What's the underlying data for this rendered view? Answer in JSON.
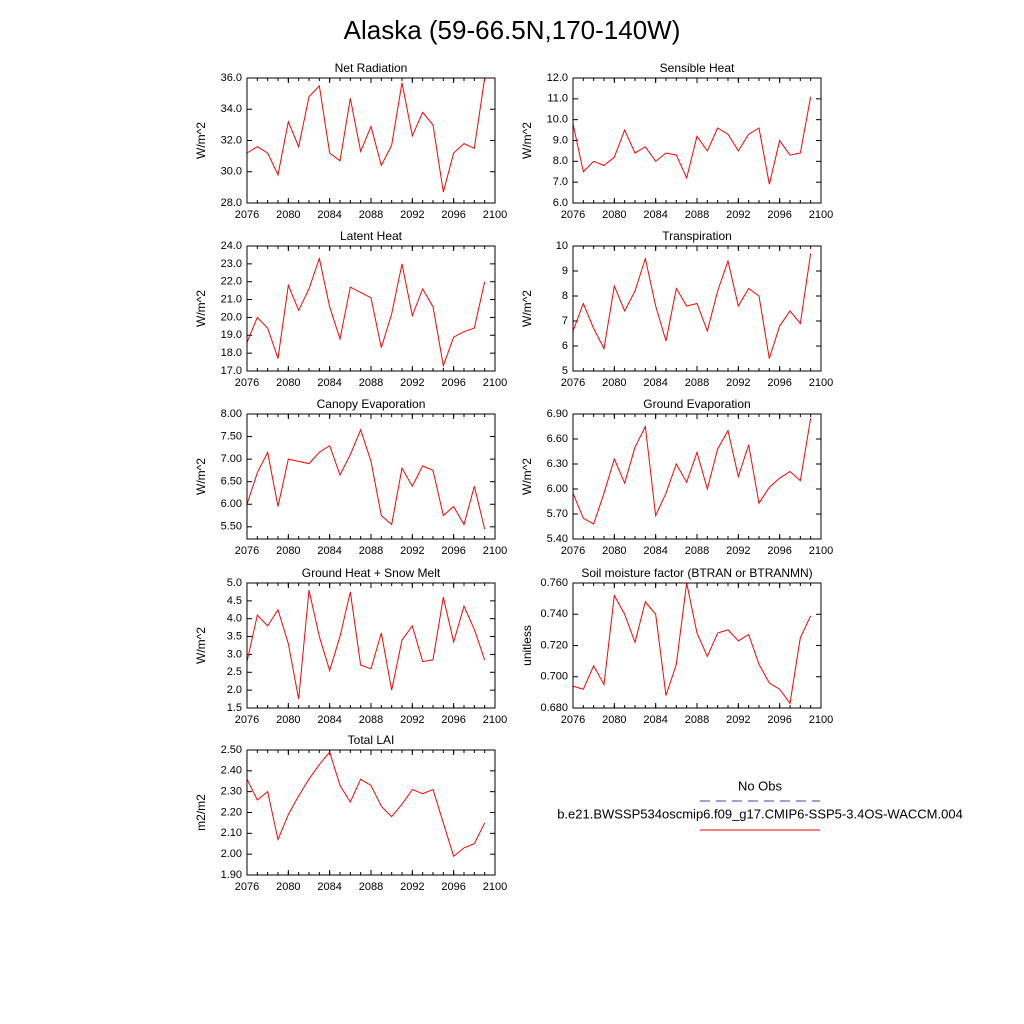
{
  "title": "Alaska (59-66.5N,170-140W)",
  "legend": [
    {
      "name": "No Obs",
      "color": "#4040a0",
      "dash": true
    },
    {
      "name": "b.e21.BWSSP534oscmip6.f09_g17.CMIP6-SSP5-3.4OS-WACCM.004",
      "color": "#ff0000",
      "dash": false
    }
  ],
  "chart_data": [
    {
      "type": "line",
      "title": "Net Radiation",
      "ylabel": "W/m^2",
      "color": "#ff0000",
      "x": [
        2076,
        2077,
        2078,
        2079,
        2080,
        2081,
        2082,
        2083,
        2084,
        2085,
        2086,
        2087,
        2088,
        2089,
        2090,
        2091,
        2092,
        2093,
        2094,
        2095,
        2096,
        2097,
        2098,
        2099
      ],
      "values": [
        31.2,
        31.6,
        31.2,
        29.8,
        33.2,
        31.6,
        34.8,
        35.5,
        31.2,
        30.7,
        34.7,
        31.3,
        32.9,
        30.4,
        31.7,
        35.7,
        32.3,
        33.8,
        33.0,
        28.7,
        31.2,
        31.8,
        31.5,
        36.0
      ],
      "xlim": [
        2076,
        2100
      ],
      "xticks": [
        2076,
        2080,
        2084,
        2088,
        2092,
        2096,
        2100
      ],
      "ylim": [
        28,
        36
      ],
      "yticks": [
        {
          "value": 28,
          "label": "28.0"
        },
        {
          "value": 30,
          "label": "30.0"
        },
        {
          "value": 32,
          "label": "32.0"
        },
        {
          "value": 34,
          "label": "34.0"
        },
        {
          "value": 36,
          "label": "36.0"
        }
      ]
    },
    {
      "type": "line",
      "title": "Sensible Heat",
      "ylabel": "W/m^2",
      "color": "#ff0000",
      "x": [
        2076,
        2077,
        2078,
        2079,
        2080,
        2081,
        2082,
        2083,
        2084,
        2085,
        2086,
        2087,
        2088,
        2089,
        2090,
        2091,
        2092,
        2093,
        2094,
        2095,
        2096,
        2097,
        2098,
        2099
      ],
      "values": [
        9.8,
        7.5,
        8.0,
        7.8,
        8.2,
        9.5,
        8.4,
        8.7,
        8.0,
        8.4,
        8.3,
        7.2,
        9.2,
        8.5,
        9.6,
        9.3,
        8.5,
        9.3,
        9.6,
        6.9,
        9.0,
        8.3,
        8.4,
        11.1
      ],
      "xlim": [
        2076,
        2100
      ],
      "xticks": [
        2076,
        2080,
        2084,
        2088,
        2092,
        2096,
        2100
      ],
      "ylim": [
        6,
        12
      ],
      "yticks": [
        {
          "value": 6,
          "label": "6.0"
        },
        {
          "value": 7,
          "label": "7.0"
        },
        {
          "value": 8,
          "label": "8.0"
        },
        {
          "value": 9,
          "label": "9.0"
        },
        {
          "value": 10,
          "label": "10.0"
        },
        {
          "value": 11,
          "label": "11.0"
        },
        {
          "value": 12,
          "label": "12.0"
        }
      ]
    },
    {
      "type": "line",
      "title": "Latent Heat",
      "ylabel": "W/m^2",
      "color": "#ff0000",
      "x": [
        2076,
        2077,
        2078,
        2079,
        2080,
        2081,
        2082,
        2083,
        2084,
        2085,
        2086,
        2087,
        2088,
        2089,
        2090,
        2091,
        2092,
        2093,
        2094,
        2095,
        2096,
        2097,
        2098,
        2099
      ],
      "values": [
        18.6,
        20.0,
        19.4,
        17.7,
        21.8,
        20.4,
        21.6,
        23.3,
        20.6,
        18.8,
        21.7,
        21.4,
        21.1,
        18.3,
        20.2,
        23.0,
        20.1,
        21.6,
        20.6,
        17.3,
        18.9,
        19.2,
        19.4,
        22.0
      ],
      "xlim": [
        2076,
        2100
      ],
      "xticks": [
        2076,
        2080,
        2084,
        2088,
        2092,
        2096,
        2100
      ],
      "ylim": [
        17,
        24
      ],
      "yticks": [
        {
          "value": 17,
          "label": "17.0"
        },
        {
          "value": 18,
          "label": "18.0"
        },
        {
          "value": 19,
          "label": "19.0"
        },
        {
          "value": 20,
          "label": "20.0"
        },
        {
          "value": 21,
          "label": "21.0"
        },
        {
          "value": 22,
          "label": "22.0"
        },
        {
          "value": 23,
          "label": "23.0"
        },
        {
          "value": 24,
          "label": "24.0"
        }
      ]
    },
    {
      "type": "line",
      "title": "Transpiration",
      "ylabel": "W/m^2",
      "color": "#ff0000",
      "x": [
        2076,
        2077,
        2078,
        2079,
        2080,
        2081,
        2082,
        2083,
        2084,
        2085,
        2086,
        2087,
        2088,
        2089,
        2090,
        2091,
        2092,
        2093,
        2094,
        2095,
        2096,
        2097,
        2098,
        2099
      ],
      "values": [
        6.6,
        7.7,
        6.7,
        5.9,
        8.4,
        7.4,
        8.2,
        9.5,
        7.6,
        6.2,
        8.3,
        7.6,
        7.7,
        6.6,
        8.2,
        9.4,
        7.6,
        8.3,
        8.0,
        5.5,
        6.8,
        7.4,
        6.9,
        9.7
      ],
      "xlim": [
        2076,
        2100
      ],
      "xticks": [
        2076,
        2080,
        2084,
        2088,
        2092,
        2096,
        2100
      ],
      "ylim": [
        5,
        10
      ],
      "yticks": [
        5,
        6,
        7,
        8,
        9,
        10
      ]
    },
    {
      "type": "line",
      "title": "Canopy Evaporation",
      "ylabel": "W/m^2",
      "color": "#ff0000",
      "x": [
        2076,
        2077,
        2078,
        2079,
        2080,
        2081,
        2082,
        2083,
        2084,
        2085,
        2086,
        2087,
        2088,
        2089,
        2090,
        2091,
        2092,
        2093,
        2094,
        2095,
        2096,
        2097,
        2098,
        2099
      ],
      "values": [
        6.0,
        6.7,
        7.15,
        5.95,
        7.0,
        6.95,
        6.9,
        7.15,
        7.3,
        6.65,
        7.1,
        7.65,
        6.95,
        5.75,
        5.55,
        6.8,
        6.4,
        6.85,
        6.75,
        5.75,
        5.95,
        5.55,
        6.4,
        5.45
      ],
      "xlim": [
        2076,
        2100
      ],
      "xticks": [
        2076,
        2080,
        2084,
        2088,
        2092,
        2096,
        2100
      ],
      "ylim": [
        5.23,
        8
      ],
      "yticks": [
        {
          "value": 5.5,
          "label": "5.50"
        },
        {
          "value": 6,
          "label": "6.00"
        },
        {
          "value": 6.5,
          "label": "6.50"
        },
        {
          "value": 7,
          "label": "7.00"
        },
        {
          "value": 7.5,
          "label": "7.50"
        },
        {
          "value": 8,
          "label": "8.00"
        }
      ]
    },
    {
      "type": "line",
      "title": "Ground Evaporation",
      "ylabel": "W/m^2",
      "color": "#ff0000",
      "x": [
        2076,
        2077,
        2078,
        2079,
        2080,
        2081,
        2082,
        2083,
        2084,
        2085,
        2086,
        2087,
        2088,
        2089,
        2090,
        2091,
        2092,
        2093,
        2094,
        2095,
        2096,
        2097,
        2098,
        2099
      ],
      "values": [
        5.95,
        5.65,
        5.58,
        5.95,
        6.36,
        6.07,
        6.5,
        6.75,
        5.68,
        5.95,
        6.3,
        6.08,
        6.44,
        6.0,
        6.48,
        6.7,
        6.15,
        6.53,
        5.83,
        6.02,
        6.13,
        6.21,
        6.1,
        6.85
      ],
      "xlim": [
        2076,
        2100
      ],
      "xticks": [
        2076,
        2080,
        2084,
        2088,
        2092,
        2096,
        2100
      ],
      "ylim": [
        5.4,
        6.9
      ],
      "yticks": [
        {
          "value": 5.4,
          "label": "5.40"
        },
        {
          "value": 5.7,
          "label": "5.70"
        },
        {
          "value": 6,
          "label": "6.00"
        },
        {
          "value": 6.3,
          "label": "6.30"
        },
        {
          "value": 6.6,
          "label": "6.60"
        },
        {
          "value": 6.9,
          "label": "6.90"
        }
      ]
    },
    {
      "type": "line",
      "title": "Ground Heat + Snow Melt",
      "ylabel": "W/m^2",
      "color": "#ff0000",
      "x": [
        2076,
        2077,
        2078,
        2079,
        2080,
        2081,
        2082,
        2083,
        2084,
        2085,
        2086,
        2087,
        2088,
        2089,
        2090,
        2091,
        2092,
        2093,
        2094,
        2095,
        2096,
        2097,
        2098,
        2099
      ],
      "values": [
        2.8,
        4.1,
        3.8,
        4.25,
        3.3,
        1.75,
        4.8,
        3.5,
        2.55,
        3.5,
        4.75,
        2.7,
        2.6,
        3.6,
        2.0,
        3.4,
        3.8,
        2.8,
        2.85,
        4.6,
        3.35,
        4.35,
        3.7,
        2.85
      ],
      "xlim": [
        2076,
        2100
      ],
      "xticks": [
        2076,
        2080,
        2084,
        2088,
        2092,
        2096,
        2100
      ],
      "ylim": [
        1.5,
        5
      ],
      "yticks": [
        {
          "value": 1.5,
          "label": "1.5"
        },
        {
          "value": 2,
          "label": "2.0"
        },
        {
          "value": 2.5,
          "label": "2.5"
        },
        {
          "value": 3,
          "label": "3.0"
        },
        {
          "value": 3.5,
          "label": "3.5"
        },
        {
          "value": 4,
          "label": "4.0"
        },
        {
          "value": 4.5,
          "label": "4.5"
        },
        {
          "value": 5,
          "label": "5.0"
        }
      ]
    },
    {
      "type": "line",
      "title": "Soil moisture factor (BTRAN or BTRANMN)",
      "ylabel": "unitless",
      "color": "#ff0000",
      "x": [
        2076,
        2077,
        2078,
        2079,
        2080,
        2081,
        2082,
        2083,
        2084,
        2085,
        2086,
        2087,
        2088,
        2089,
        2090,
        2091,
        2092,
        2093,
        2094,
        2095,
        2096,
        2097,
        2098,
        2099
      ],
      "values": [
        0.694,
        0.692,
        0.707,
        0.695,
        0.752,
        0.74,
        0.722,
        0.748,
        0.74,
        0.688,
        0.708,
        0.76,
        0.728,
        0.713,
        0.728,
        0.73,
        0.723,
        0.727,
        0.708,
        0.696,
        0.692,
        0.683,
        0.725,
        0.739
      ],
      "xlim": [
        2076,
        2100
      ],
      "xticks": [
        2076,
        2080,
        2084,
        2088,
        2092,
        2096,
        2100
      ],
      "ylim": [
        0.68,
        0.76
      ],
      "yticks": [
        {
          "value": 0.68,
          "label": "0.680"
        },
        {
          "value": 0.7,
          "label": "0.700"
        },
        {
          "value": 0.72,
          "label": "0.720"
        },
        {
          "value": 0.74,
          "label": "0.740"
        },
        {
          "value": 0.76,
          "label": "0.760"
        }
      ]
    },
    {
      "type": "line",
      "title": "Total LAI",
      "ylabel": "m2/m2",
      "color": "#ff0000",
      "x": [
        2076,
        2077,
        2078,
        2079,
        2080,
        2081,
        2082,
        2083,
        2084,
        2085,
        2086,
        2087,
        2088,
        2089,
        2090,
        2091,
        2092,
        2093,
        2094,
        2095,
        2096,
        2097,
        2098,
        2099
      ],
      "values": [
        2.36,
        2.26,
        2.3,
        2.07,
        2.19,
        2.28,
        2.36,
        2.43,
        2.49,
        2.33,
        2.25,
        2.36,
        2.33,
        2.23,
        2.18,
        2.24,
        2.31,
        2.29,
        2.31,
        2.15,
        1.99,
        2.03,
        2.05,
        2.15
      ],
      "xlim": [
        2076,
        2100
      ],
      "xticks": [
        2076,
        2080,
        2084,
        2088,
        2092,
        2096,
        2100
      ],
      "ylim": [
        1.9,
        2.5
      ],
      "yticks": [
        {
          "value": 1.9,
          "label": "1.90"
        },
        {
          "value": 2,
          "label": "2.00"
        },
        {
          "value": 2.1,
          "label": "2.10"
        },
        {
          "value": 2.2,
          "label": "2.20"
        },
        {
          "value": 2.3,
          "label": "2.30"
        },
        {
          "value": 2.4,
          "label": "2.40"
        },
        {
          "value": 2.5,
          "label": "2.50"
        }
      ]
    }
  ]
}
